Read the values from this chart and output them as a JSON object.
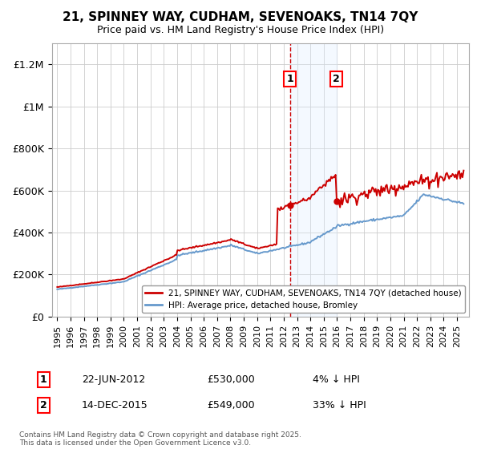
{
  "title": "21, SPINNEY WAY, CUDHAM, SEVENOAKS, TN14 7QY",
  "subtitle": "Price paid vs. HM Land Registry's House Price Index (HPI)",
  "ylim": [
    0,
    1300000
  ],
  "yticks": [
    0,
    200000,
    400000,
    600000,
    800000,
    1000000,
    1200000
  ],
  "ytick_labels": [
    "£0",
    "£200K",
    "£400K",
    "£600K",
    "£800K",
    "£1M",
    "£1.2M"
  ],
  "sale1_date": 2012.47,
  "sale1_price": 530000,
  "sale1_label": "1",
  "sale1_text": "22-JUN-2012",
  "sale1_amount": "£530,000",
  "sale1_note": "4% ↓ HPI",
  "sale2_date": 2015.95,
  "sale2_price": 549000,
  "sale2_label": "2",
  "sale2_text": "14-DEC-2015",
  "sale2_amount": "£549,000",
  "sale2_note": "33% ↓ HPI",
  "hpi_color": "#6699cc",
  "price_color": "#cc0000",
  "background_color": "#ffffff",
  "grid_color": "#cccccc",
  "shade_color": "#ddeeff",
  "legend_label_red": "21, SPINNEY WAY, CUDHAM, SEVENOAKS, TN14 7QY (detached house)",
  "legend_label_blue": "HPI: Average price, detached house, Bromley",
  "footnote": "Contains HM Land Registry data © Crown copyright and database right 2025.\nThis data is licensed under the Open Government Licence v3.0."
}
